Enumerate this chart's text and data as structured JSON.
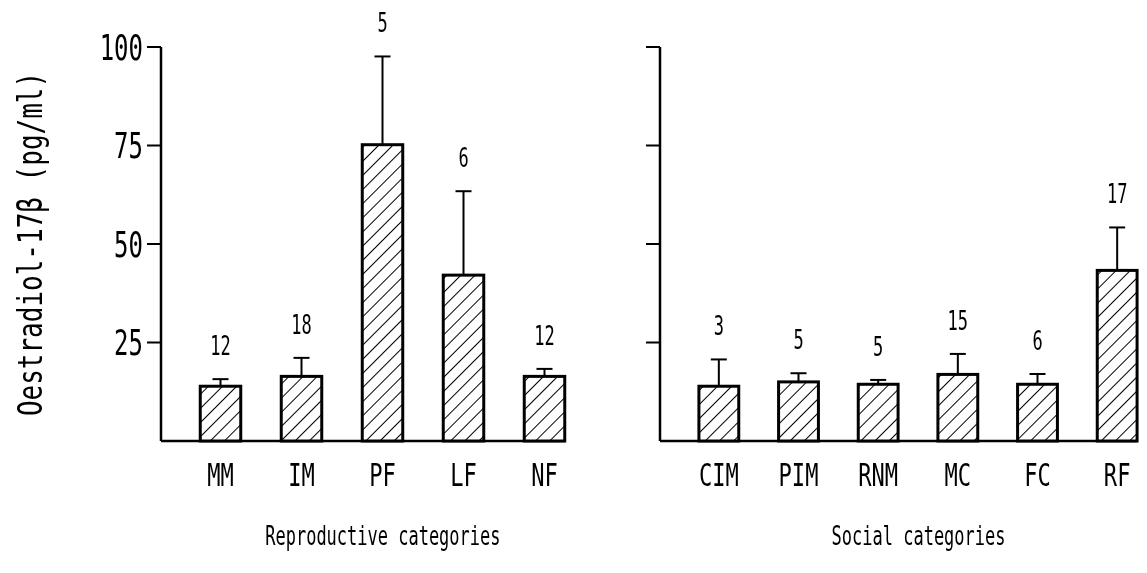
{
  "chart_data": [
    {
      "type": "bar",
      "xlabel": "Reproductive categories",
      "ylabel": "Oestradiol-17β (pg/ml)",
      "categories": [
        "MM",
        "IM",
        "PF",
        "LF",
        "NF"
      ],
      "values": [
        13.9,
        16.4,
        75.2,
        42.1,
        16.4
      ],
      "errors": [
        [
          13.9,
          15.7
        ],
        [
          16.4,
          21.1
        ],
        [
          75.2,
          97.6
        ],
        [
          42.1,
          63.4
        ],
        [
          16.4,
          18.3
        ]
      ],
      "color": "#000000",
      "ylim": [
        0,
        100
      ],
      "yticks": [
        25,
        50,
        75,
        100
      ],
      "annotations": [
        "12",
        "18",
        "5",
        "6",
        "12"
      ]
    },
    {
      "type": "bar",
      "xlabel": "Social categories",
      "categories": [
        "CIM",
        "PIM",
        "RNM",
        "MC",
        "FC",
        "RF"
      ],
      "values": [
        13.9,
        15.0,
        14.4,
        16.9,
        14.4,
        43.3
      ],
      "errors": [
        [
          13.9,
          20.7
        ],
        [
          15.0,
          17.2
        ],
        [
          14.4,
          15.5
        ],
        [
          16.9,
          22.1
        ],
        [
          14.4,
          17.0
        ],
        [
          43.3,
          54.2
        ]
      ],
      "color": "#000000",
      "ylim": [
        0,
        100
      ],
      "yticks": [
        25,
        50,
        75,
        100
      ],
      "tick_labels": "x",
      "annotations": [
        "3",
        "5",
        "5",
        "15",
        "6",
        "17"
      ]
    }
  ]
}
